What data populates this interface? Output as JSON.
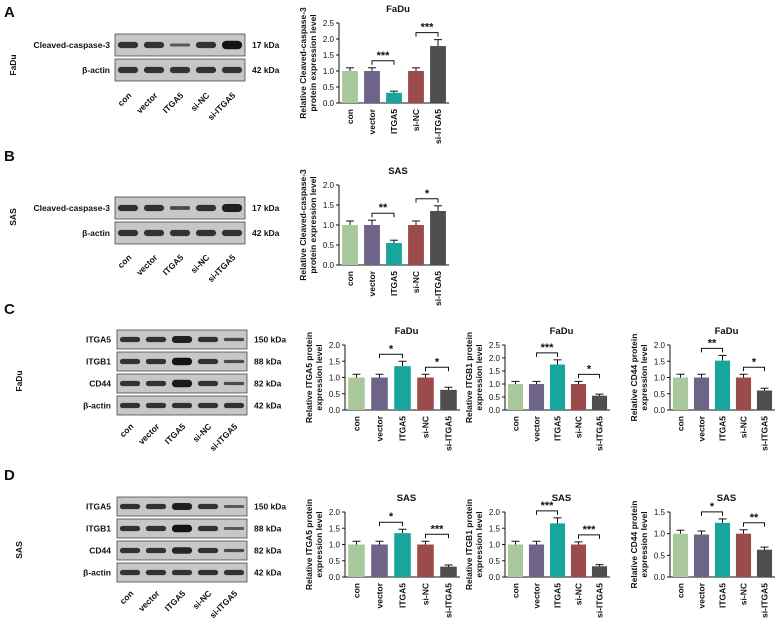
{
  "panels": [
    "A",
    "B",
    "C",
    "D"
  ],
  "cell_lines": {
    "a": "FaDu",
    "b": "SAS",
    "c": "FaDu",
    "d": "SAS"
  },
  "lanes": [
    "con",
    "vector",
    "ITGA5",
    "si-NC",
    "si-ITGA5"
  ],
  "blots": {
    "a": {
      "rows": [
        {
          "label": "Cleaved-caspase-3",
          "kda": "17 kDa",
          "intensity": [
            1.0,
            1.0,
            0.35,
            1.0,
            1.6
          ]
        },
        {
          "label": "β-actin",
          "kda": "42 kDa",
          "intensity": [
            1,
            1,
            1,
            1,
            1
          ]
        }
      ]
    },
    "b": {
      "rows": [
        {
          "label": "Cleaved-caspase-3",
          "kda": "17 kDa",
          "intensity": [
            1.0,
            1.0,
            0.6,
            1.0,
            1.3
          ]
        },
        {
          "label": "β-actin",
          "kda": "42 kDa",
          "intensity": [
            1,
            1,
            1,
            1,
            1
          ]
        }
      ]
    },
    "c": {
      "rows": [
        {
          "label": "ITGA5",
          "kda": "150 kDa",
          "intensity": [
            1.0,
            1.0,
            1.3,
            1.0,
            0.6
          ]
        },
        {
          "label": "ITGB1",
          "kda": "88 kDa",
          "intensity": [
            1.0,
            1.0,
            1.6,
            1.0,
            0.6
          ]
        },
        {
          "label": "CD44",
          "kda": "82 kDa",
          "intensity": [
            1.0,
            1.0,
            1.4,
            1.0,
            0.6
          ]
        },
        {
          "label": "β-actin",
          "kda": "42 kDa",
          "intensity": [
            1,
            1,
            1,
            1,
            1
          ]
        }
      ]
    },
    "d": {
      "rows": [
        {
          "label": "ITGA5",
          "kda": "150 kDa",
          "intensity": [
            1.0,
            1.0,
            1.3,
            1.0,
            0.35
          ]
        },
        {
          "label": "ITGB1",
          "kda": "88 kDa",
          "intensity": [
            1.0,
            1.0,
            1.5,
            1.0,
            0.35
          ]
        },
        {
          "label": "CD44",
          "kda": "82 kDa",
          "intensity": [
            1.0,
            1.0,
            1.2,
            1.0,
            0.6
          ]
        },
        {
          "label": "β-actin",
          "kda": "42 kDa",
          "intensity": [
            1,
            1,
            1,
            1,
            1
          ]
        }
      ]
    }
  },
  "colors": [
    "#a9c89b",
    "#6e6487",
    "#17a69c",
    "#9c4b4b",
    "#4d4f4f"
  ],
  "chart_data": [
    {
      "id": "a",
      "type": "bar",
      "title": "FaDu",
      "ylabel": [
        "Relative Cleaved-caspase-3",
        "protein expression level"
      ],
      "categories": [
        "con",
        "vector",
        "ITGA5",
        "si-NC",
        "si-ITGA5"
      ],
      "values": [
        1.0,
        1.0,
        0.32,
        1.0,
        1.78
      ],
      "errors": [
        0.1,
        0.1,
        0.05,
        0.1,
        0.2
      ],
      "ylim": [
        0,
        2.5
      ],
      "yticks": [
        "0.0",
        "0.5",
        "1.0",
        "1.5",
        "2.0",
        "2.5"
      ],
      "significance": [
        {
          "from": 1,
          "to": 2,
          "label": "***"
        },
        {
          "from": 3,
          "to": 4,
          "label": "***"
        }
      ]
    },
    {
      "id": "b",
      "type": "bar",
      "title": "SAS",
      "ylabel": [
        "Relative Cleaved-caspase-3",
        "protein expression level"
      ],
      "categories": [
        "con",
        "vector",
        "ITGA5",
        "si-NC",
        "si-ITGA5"
      ],
      "values": [
        1.0,
        1.0,
        0.55,
        1.0,
        1.35
      ],
      "errors": [
        0.1,
        0.12,
        0.07,
        0.1,
        0.13
      ],
      "ylim": [
        0,
        2.0
      ],
      "yticks": [
        "0.0",
        "0.5",
        "1.0",
        "1.5",
        "2.0"
      ],
      "significance": [
        {
          "from": 1,
          "to": 2,
          "label": "**"
        },
        {
          "from": 3,
          "to": 4,
          "label": "*"
        }
      ]
    },
    {
      "id": "c1",
      "type": "bar",
      "title": "FaDu",
      "ylabel": [
        "Relative ITGA5 protein",
        "expression level"
      ],
      "categories": [
        "con",
        "vector",
        "ITGA5",
        "si-NC",
        "si-ITGA5"
      ],
      "values": [
        1.0,
        1.0,
        1.35,
        1.0,
        0.62
      ],
      "errors": [
        0.1,
        0.1,
        0.15,
        0.1,
        0.08
      ],
      "ylim": [
        0,
        2.0
      ],
      "yticks": [
        "0.0",
        "0.5",
        "1.0",
        "1.5",
        "2.0"
      ],
      "significance": [
        {
          "from": 1,
          "to": 2,
          "label": "*"
        },
        {
          "from": 3,
          "to": 4,
          "label": "*"
        }
      ]
    },
    {
      "id": "c2",
      "type": "bar",
      "title": "FaDu",
      "ylabel": [
        "Relative ITGB1 protein",
        "expression level"
      ],
      "categories": [
        "con",
        "vector",
        "ITGA5",
        "si-NC",
        "si-ITGA5"
      ],
      "values": [
        1.0,
        1.0,
        1.75,
        1.0,
        0.55
      ],
      "errors": [
        0.1,
        0.1,
        0.18,
        0.1,
        0.06
      ],
      "ylim": [
        0,
        2.5
      ],
      "yticks": [
        "0.0",
        "0.5",
        "1.0",
        "1.5",
        "2.0",
        "2.5"
      ],
      "significance": [
        {
          "from": 1,
          "to": 2,
          "label": "***"
        },
        {
          "from": 3,
          "to": 4,
          "label": "*"
        }
      ]
    },
    {
      "id": "c3",
      "type": "bar",
      "title": "FaDu",
      "ylabel": [
        "Relative CD44 protein",
        "expression level"
      ],
      "categories": [
        "con",
        "vector",
        "ITGA5",
        "si-NC",
        "si-ITGA5"
      ],
      "values": [
        1.0,
        1.0,
        1.52,
        1.0,
        0.6
      ],
      "errors": [
        0.1,
        0.1,
        0.16,
        0.1,
        0.07
      ],
      "ylim": [
        0,
        2.0
      ],
      "yticks": [
        "0.0",
        "0.5",
        "1.0",
        "1.5",
        "2.0"
      ],
      "significance": [
        {
          "from": 1,
          "to": 2,
          "label": "**"
        },
        {
          "from": 3,
          "to": 4,
          "label": "*"
        }
      ]
    },
    {
      "id": "d1",
      "type": "bar",
      "title": "SAS",
      "ylabel": [
        "Relative ITGA5 protein",
        "expression level"
      ],
      "categories": [
        "con",
        "vector",
        "ITGA5",
        "si-NC",
        "si-ITGA5"
      ],
      "values": [
        1.0,
        1.0,
        1.35,
        1.0,
        0.32
      ],
      "errors": [
        0.1,
        0.1,
        0.12,
        0.1,
        0.05
      ],
      "ylim": [
        0,
        2.0
      ],
      "yticks": [
        "0.0",
        "0.5",
        "1.0",
        "1.5",
        "2.0"
      ],
      "significance": [
        {
          "from": 1,
          "to": 2,
          "label": "*"
        },
        {
          "from": 3,
          "to": 4,
          "label": "***"
        }
      ]
    },
    {
      "id": "d2",
      "type": "bar",
      "title": "SAS",
      "ylabel": [
        "Relative ITGB1 protein",
        "expression level"
      ],
      "categories": [
        "con",
        "vector",
        "ITGA5",
        "si-NC",
        "si-ITGA5"
      ],
      "values": [
        1.0,
        1.0,
        1.65,
        1.0,
        0.33
      ],
      "errors": [
        0.1,
        0.1,
        0.17,
        0.08,
        0.05
      ],
      "ylim": [
        0,
        2.0
      ],
      "yticks": [
        "0.0",
        "0.5",
        "1.0",
        "1.5",
        "2.0"
      ],
      "significance": [
        {
          "from": 1,
          "to": 2,
          "label": "***"
        },
        {
          "from": 3,
          "to": 4,
          "label": "***"
        }
      ]
    },
    {
      "id": "d3",
      "type": "bar",
      "title": "SAS",
      "ylabel": [
        "Relative CD44 protein",
        "expression level"
      ],
      "categories": [
        "con",
        "vector",
        "ITGA5",
        "si-NC",
        "si-ITGA5"
      ],
      "values": [
        1.0,
        0.98,
        1.25,
        1.0,
        0.63
      ],
      "errors": [
        0.08,
        0.08,
        0.09,
        0.09,
        0.06
      ],
      "ylim": [
        0,
        1.5
      ],
      "yticks": [
        "0.0",
        "0.5",
        "1.0",
        "1.5"
      ],
      "significance": [
        {
          "from": 1,
          "to": 2,
          "label": "*"
        },
        {
          "from": 3,
          "to": 4,
          "label": "**"
        }
      ]
    }
  ]
}
